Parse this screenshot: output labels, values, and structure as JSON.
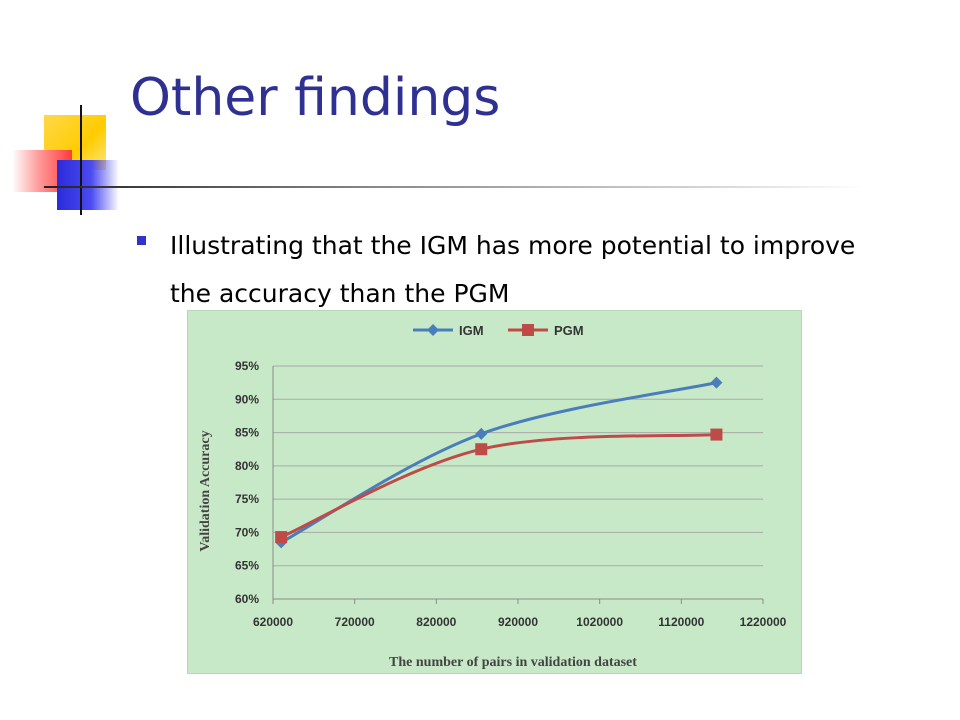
{
  "slide": {
    "title": "Other findings",
    "bullet": "Illustrating that the IGM has more potential to improve the accuracy than the PGM"
  },
  "colors": {
    "title": "#2e3192",
    "bullet": "#3333cc",
    "chart_background": "#c8e9c8",
    "igm": "#4a7ebb",
    "pgm": "#be4b48"
  },
  "chart_data": {
    "type": "line",
    "title": "",
    "xlabel": "The number of pairs in validation dataset",
    "ylabel": "Validation Accuracy",
    "x_ticks": [
      620000,
      720000,
      820000,
      920000,
      1020000,
      1120000,
      1220000
    ],
    "y_ticks": [
      "60%",
      "65%",
      "70%",
      "75%",
      "80%",
      "85%",
      "90%",
      "95%"
    ],
    "xlim": [
      620000,
      1220000
    ],
    "ylim": [
      60,
      95
    ],
    "grid": "horizontal",
    "legend_position": "top-center",
    "series": [
      {
        "name": "IGM",
        "marker": "diamond",
        "color": "#4a7ebb",
        "x": [
          630000,
          875000,
          1163000
        ],
        "y": [
          68.5,
          84.8,
          92.5
        ]
      },
      {
        "name": "PGM",
        "marker": "square",
        "color": "#be4b48",
        "x": [
          630000,
          875000,
          1163000
        ],
        "y": [
          69.3,
          82.5,
          84.7
        ]
      }
    ]
  }
}
